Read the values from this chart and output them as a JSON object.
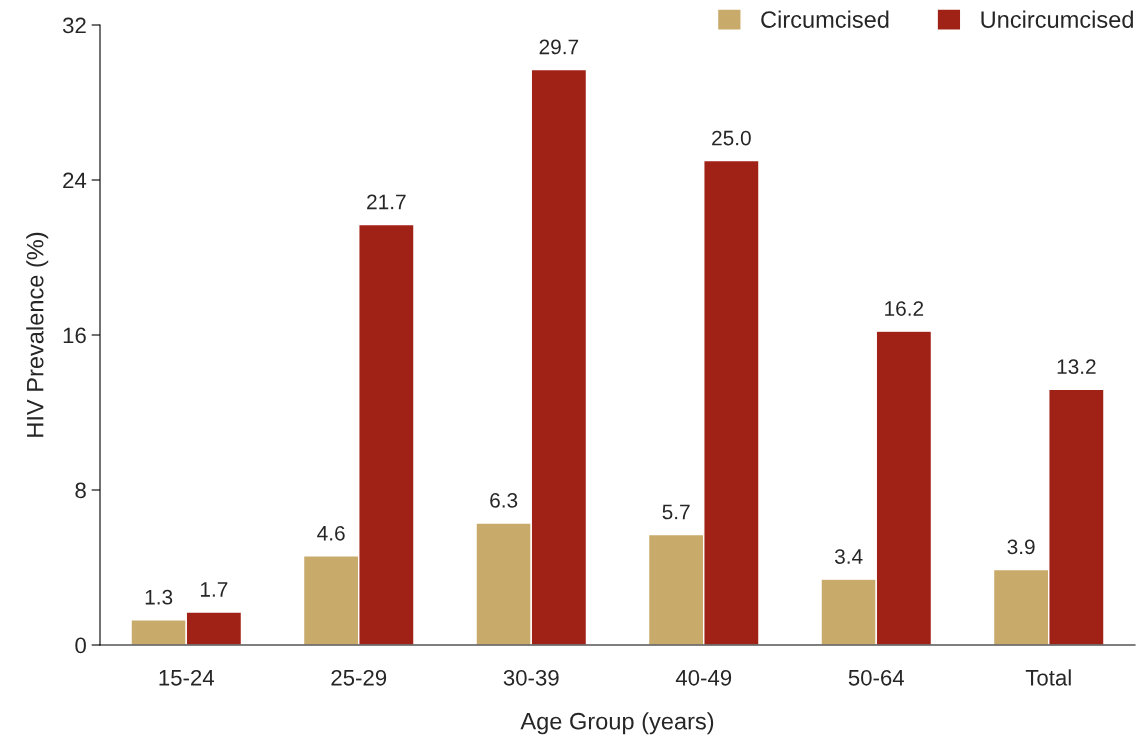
{
  "chart_data": {
    "type": "bar",
    "xlabel": "Age Group (years)",
    "ylabel": "HIV Prevalence (%)",
    "categories": [
      "15-24",
      "25-29",
      "30-39",
      "40-49",
      "50-64",
      "Total"
    ],
    "series": [
      {
        "name": "Circumcised",
        "color": "#c8aa6a",
        "values": [
          1.3,
          4.6,
          6.3,
          5.7,
          3.4,
          3.9
        ],
        "value_labels": [
          "1.3",
          "4.6",
          "6.3",
          "5.7",
          "3.4",
          "3.9"
        ]
      },
      {
        "name": "Uncircumcised",
        "color": "#a02116",
        "values": [
          1.7,
          21.7,
          29.7,
          25.0,
          16.2,
          13.2
        ],
        "value_labels": [
          "1.7",
          "21.7",
          "29.7",
          "25.0",
          "16.2",
          "13.2"
        ]
      }
    ],
    "ylim": [
      0,
      32
    ],
    "yticks": [
      0,
      8,
      16,
      24,
      32
    ],
    "grid": false,
    "legend": "top right"
  }
}
